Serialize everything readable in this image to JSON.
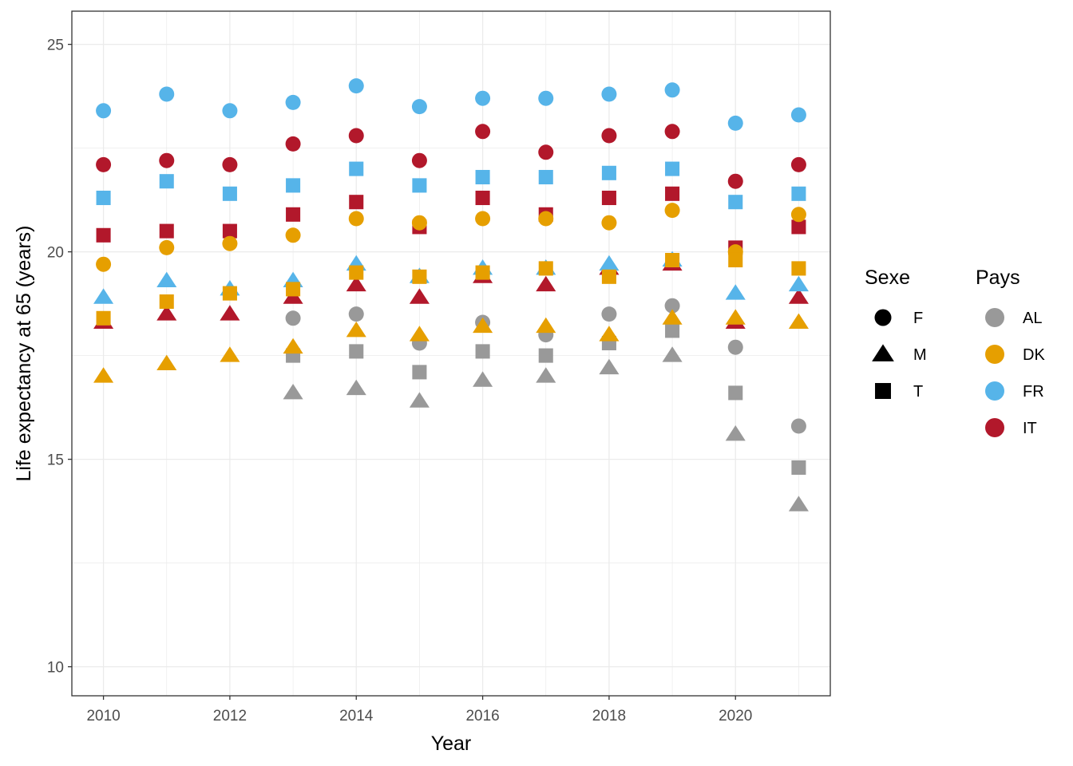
{
  "chart_data": {
    "type": "scatter",
    "title": "",
    "xlabel": "Year",
    "ylabel": "Life expectancy at 65 (years)",
    "xlim": [
      2009.5,
      2021.5
    ],
    "ylim": [
      9.3,
      25.8
    ],
    "x_ticks": [
      2010,
      2012,
      2014,
      2016,
      2018,
      2020
    ],
    "y_ticks": [
      10,
      15,
      20,
      25
    ],
    "grid": true,
    "legend_placement": "right",
    "legends": {
      "shape": {
        "title": "Sexe",
        "entries": [
          {
            "label": "F",
            "shape": "circle"
          },
          {
            "label": "M",
            "shape": "triangle"
          },
          {
            "label": "T",
            "shape": "square"
          }
        ]
      },
      "color": {
        "title": "Pays",
        "entries": [
          {
            "label": "AL",
            "color": "#999999"
          },
          {
            "label": "DK",
            "color": "#E69F00"
          },
          {
            "label": "FR",
            "color": "#56B4E9"
          },
          {
            "label": "IT",
            "color": "#B2182B"
          }
        ]
      }
    },
    "x": [
      2010,
      2011,
      2012,
      2013,
      2014,
      2015,
      2016,
      2017,
      2018,
      2019,
      2020,
      2021
    ],
    "series": [
      {
        "pays": "AL",
        "sexe": "F",
        "values": [
          null,
          null,
          null,
          18.4,
          18.5,
          17.8,
          18.3,
          18.0,
          18.5,
          18.7,
          17.7,
          15.8
        ]
      },
      {
        "pays": "AL",
        "sexe": "M",
        "values": [
          null,
          null,
          null,
          16.6,
          16.7,
          16.4,
          16.9,
          17.0,
          17.2,
          17.5,
          15.6,
          13.9
        ]
      },
      {
        "pays": "AL",
        "sexe": "T",
        "values": [
          null,
          null,
          null,
          17.5,
          17.6,
          17.1,
          17.6,
          17.5,
          17.8,
          18.1,
          16.6,
          14.8
        ]
      },
      {
        "pays": "IT",
        "sexe": "F",
        "values": [
          22.1,
          22.2,
          22.1,
          22.6,
          22.8,
          22.2,
          22.9,
          22.4,
          22.8,
          22.9,
          21.7,
          22.1
        ]
      },
      {
        "pays": "IT",
        "sexe": "M",
        "values": [
          18.3,
          18.5,
          18.5,
          18.9,
          19.2,
          18.9,
          19.4,
          19.2,
          19.6,
          19.7,
          18.3,
          18.9
        ]
      },
      {
        "pays": "IT",
        "sexe": "T",
        "values": [
          20.4,
          20.5,
          20.5,
          20.9,
          21.2,
          20.6,
          21.3,
          20.9,
          21.3,
          21.4,
          20.1,
          20.6
        ]
      },
      {
        "pays": "FR",
        "sexe": "F",
        "values": [
          23.4,
          23.8,
          23.4,
          23.6,
          24.0,
          23.5,
          23.7,
          23.7,
          23.8,
          23.9,
          23.1,
          23.3
        ]
      },
      {
        "pays": "FR",
        "sexe": "M",
        "values": [
          18.9,
          19.3,
          19.1,
          19.3,
          19.7,
          19.4,
          19.6,
          19.6,
          19.7,
          19.8,
          19.0,
          19.2
        ]
      },
      {
        "pays": "FR",
        "sexe": "T",
        "values": [
          21.3,
          21.7,
          21.4,
          21.6,
          22.0,
          21.6,
          21.8,
          21.8,
          21.9,
          22.0,
          21.2,
          21.4
        ]
      },
      {
        "pays": "DK",
        "sexe": "F",
        "values": [
          19.7,
          20.1,
          20.2,
          20.4,
          20.8,
          20.7,
          20.8,
          20.8,
          20.7,
          21.0,
          20.0,
          20.9
        ]
      },
      {
        "pays": "DK",
        "sexe": "M",
        "values": [
          17.0,
          17.3,
          17.5,
          17.7,
          18.1,
          18.0,
          18.2,
          18.2,
          18.0,
          18.4,
          18.4,
          18.3
        ]
      },
      {
        "pays": "DK",
        "sexe": "T",
        "values": [
          18.4,
          18.8,
          19.0,
          19.1,
          19.5,
          19.4,
          19.5,
          19.6,
          19.4,
          19.8,
          19.8,
          19.6
        ]
      }
    ]
  }
}
